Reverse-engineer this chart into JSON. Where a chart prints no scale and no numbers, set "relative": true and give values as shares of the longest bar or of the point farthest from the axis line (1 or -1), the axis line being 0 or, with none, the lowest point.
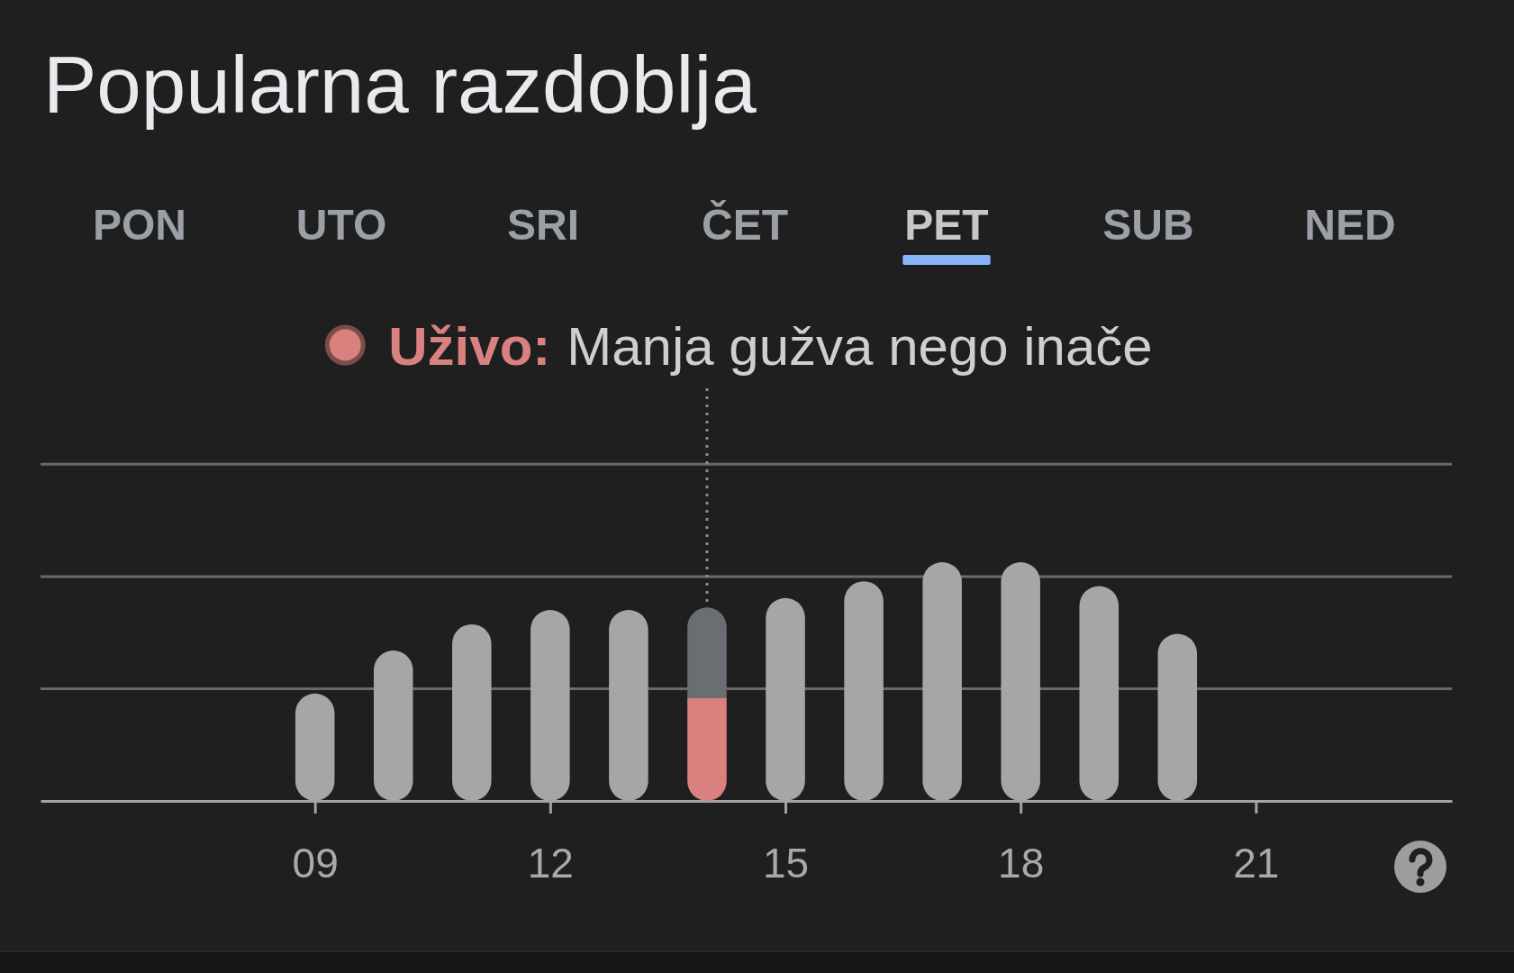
{
  "chart_data": {
    "type": "bar",
    "title": "Popularna razdoblja",
    "annotations": [
      "PON",
      "UTO",
      "SRI",
      "ČET",
      "PET",
      "SUB",
      "NED"
    ],
    "x": [
      9,
      10,
      11,
      12,
      13,
      14,
      15,
      16,
      17,
      18,
      19,
      20
    ],
    "xlim": [
      5.5,
      23.5
    ],
    "xticks": [
      {
        "value": 9,
        "label": "09"
      },
      12,
      15,
      18,
      21
    ],
    "relative": true,
    "stacked": true,
    "series": [
      {
        "name": "Uživo:",
        "color": "#d9817f",
        "values": [
          null,
          null,
          null,
          null,
          null,
          0.43,
          null,
          null,
          null,
          null,
          null,
          null
        ]
      },
      {
        "colors": [
          "#a6a6a6",
          "#a6a6a6",
          "#a6a6a6",
          "#a6a6a6",
          "#a6a6a6",
          "#6a6d72",
          "#a6a6a6",
          "#a6a6a6",
          "#a6a6a6",
          "#a6a6a6",
          "#a6a6a6",
          "#a6a6a6"
        ],
        "values": [
          0.45,
          0.63,
          0.74,
          0.8,
          0.8,
          0.38,
          0.85,
          0.92,
          1,
          1,
          0.9,
          0.7
        ]
      }
    ],
    "ref_lines": [
      {
        "axis": "y",
        "value": 0.47,
        "color": "#6a6a6a",
        "line_style": "solid"
      },
      {
        "axis": "y",
        "value": 0.94,
        "color": "#6a6a6a",
        "line_style": "solid"
      },
      {
        "axis": "y",
        "value": 1.41,
        "color": "#6a6a6a",
        "line_style": "solid"
      },
      {
        "axis": "x",
        "value": 14,
        "label": "Manja gužva nego inače",
        "color": "#8c8c8c",
        "line_style": "dotted"
      }
    ],
    "legend": "top"
  }
}
